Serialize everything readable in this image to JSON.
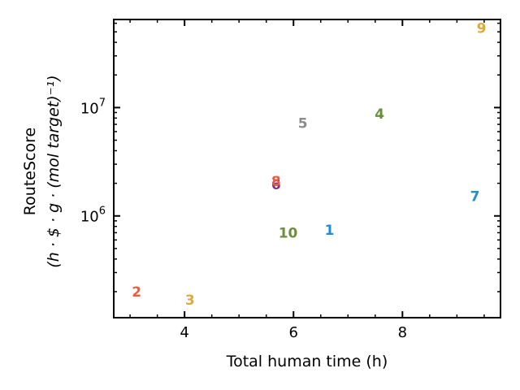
{
  "chart_data": {
    "type": "scatter",
    "xlabel": "Total human time (h)",
    "ylabel_line1": "RouteScore",
    "ylabel_line2": "(h · $ · g · (mol target)⁻¹)",
    "x_scale": "linear",
    "y_scale": "log",
    "xlim": [
      2.7,
      9.8
    ],
    "ylim": [
      115000,
      65000000
    ],
    "x_ticks": [
      {
        "value": 4,
        "label": "4"
      },
      {
        "value": 6,
        "label": "6"
      },
      {
        "value": 8,
        "label": "8"
      }
    ],
    "y_ticks": [
      {
        "value": 1000000,
        "label_base": "10",
        "label_exp": "6"
      },
      {
        "value": 10000000,
        "label_base": "10",
        "label_exp": "7"
      }
    ],
    "grid": false,
    "legend": "none",
    "points": [
      {
        "label": "1",
        "x": 6.66,
        "y": 740000,
        "color": "#1f8fcf"
      },
      {
        "label": "2",
        "x": 3.12,
        "y": 200000,
        "color": "#f05a3c"
      },
      {
        "label": "3",
        "x": 4.1,
        "y": 168000,
        "color": "#e3a83a"
      },
      {
        "label": "4",
        "x": 7.58,
        "y": 8800000,
        "color": "#6b8e3f"
      },
      {
        "label": "5",
        "x": 6.17,
        "y": 7200000,
        "color": "#8c8c8c"
      },
      {
        "label": "6",
        "x": 5.68,
        "y": 1950000,
        "color": "#7b2d8e"
      },
      {
        "label": "7",
        "x": 9.33,
        "y": 1520000,
        "color": "#1f8fcf"
      },
      {
        "label": "8",
        "x": 5.68,
        "y": 2100000,
        "color": "#f05a3c"
      },
      {
        "label": "9",
        "x": 9.45,
        "y": 54000000,
        "color": "#e3a83a"
      },
      {
        "label": "10",
        "x": 5.9,
        "y": 700000,
        "color": "#6b8e3f"
      }
    ]
  }
}
